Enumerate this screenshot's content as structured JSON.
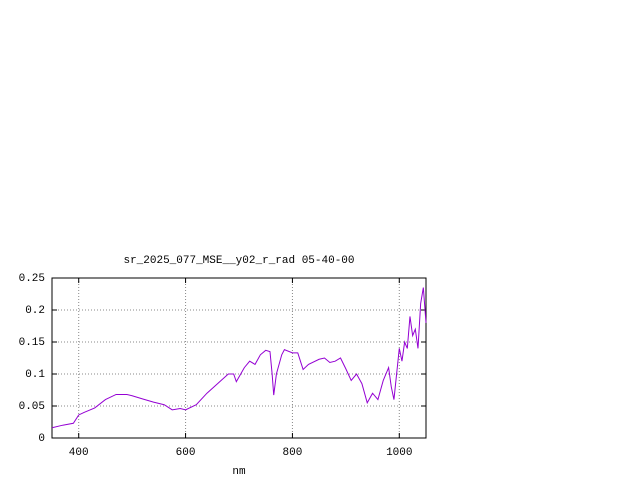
{
  "chart_data": {
    "type": "line",
    "title": "sr_2025_077_MSE__y02_r_rad 05-40-00",
    "xlabel": "nm",
    "x": [
      350,
      370,
      390,
      400,
      410,
      430,
      450,
      470,
      490,
      500,
      520,
      540,
      560,
      575,
      590,
      600,
      620,
      640,
      660,
      680,
      690,
      695,
      710,
      720,
      730,
      740,
      750,
      758,
      762,
      765,
      770,
      780,
      785,
      800,
      810,
      815,
      820,
      830,
      850,
      860,
      870,
      880,
      890,
      900,
      910,
      920,
      930,
      940,
      950,
      960,
      970,
      980,
      985,
      990,
      995,
      1000,
      1005,
      1010,
      1015,
      1020,
      1025,
      1030,
      1035,
      1040,
      1045,
      1050
    ],
    "series": [
      {
        "color": "#9400d3",
        "values": [
          0.016,
          0.02,
          0.023,
          0.036,
          0.04,
          0.047,
          0.06,
          0.068,
          0.068,
          0.066,
          0.061,
          0.056,
          0.052,
          0.044,
          0.046,
          0.044,
          0.052,
          0.07,
          0.085,
          0.1,
          0.1,
          0.088,
          0.11,
          0.12,
          0.115,
          0.13,
          0.137,
          0.135,
          0.1,
          0.067,
          0.1,
          0.13,
          0.138,
          0.133,
          0.133,
          0.12,
          0.107,
          0.115,
          0.123,
          0.125,
          0.118,
          0.12,
          0.125,
          0.108,
          0.09,
          0.1,
          0.085,
          0.055,
          0.07,
          0.06,
          0.09,
          0.11,
          0.08,
          0.06,
          0.1,
          0.14,
          0.12,
          0.15,
          0.14,
          0.19,
          0.16,
          0.17,
          0.14,
          0.21,
          0.235,
          0.18
        ]
      }
    ],
    "xlim": [
      350,
      1050
    ],
    "ylim": [
      0,
      0.25
    ],
    "xticks": [
      400,
      600,
      800,
      1000
    ],
    "yticks": [
      0,
      0.05,
      0.1,
      0.15,
      0.2,
      0.25
    ],
    "grid": true
  }
}
